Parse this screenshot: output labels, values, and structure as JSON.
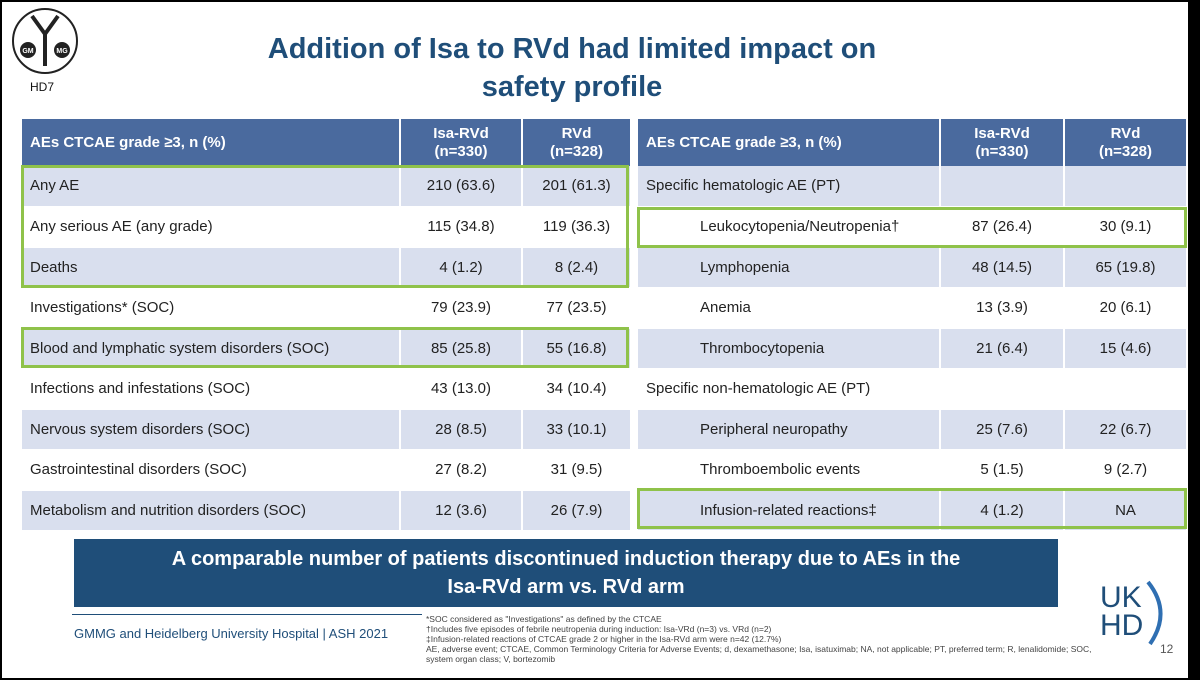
{
  "logo": {
    "left_text": "GM",
    "right_text": "MG",
    "caption": "HD7"
  },
  "title": {
    "line1": "Addition of Isa to RVd had limited impact on",
    "line2": "safety profile"
  },
  "left_table": {
    "headers": {
      "label": "AEs CTCAE grade ≥3, n (%)",
      "col1_line1": "Isa-RVd",
      "col1_line2": "(n=330)",
      "col2_line1": "RVd",
      "col2_line2": "(n=328)"
    },
    "rows": [
      {
        "label": "Any AE",
        "isa": "210 (63.6)",
        "rvd": "201 (61.3)"
      },
      {
        "label": "Any serious AE (any grade)",
        "isa": "115 (34.8)",
        "rvd": "119 (36.3)"
      },
      {
        "label": "Deaths",
        "isa": "4 (1.2)",
        "rvd": "8 (2.4)"
      },
      {
        "label": "Investigations* (SOC)",
        "isa": "79 (23.9)",
        "rvd": "77 (23.5)"
      },
      {
        "label": "Blood and lymphatic system disorders (SOC)",
        "isa": "85 (25.8)",
        "rvd": "55 (16.8)"
      },
      {
        "label": "Infections and infestations (SOC)",
        "isa": "43 (13.0)",
        "rvd": "34 (10.4)"
      },
      {
        "label": "Nervous system disorders (SOC)",
        "isa": "28 (8.5)",
        "rvd": "33 (10.1)"
      },
      {
        "label": "Gastrointestinal disorders (SOC)",
        "isa": "27 (8.2)",
        "rvd": "31 (9.5)"
      },
      {
        "label": "Metabolism and nutrition disorders (SOC)",
        "isa": "12 (3.6)",
        "rvd": "26 (7.9)"
      }
    ]
  },
  "right_table": {
    "headers": {
      "label": "AEs CTCAE grade ≥3, n (%)",
      "col1_line1": "Isa-RVd",
      "col1_line2": "(n=330)",
      "col2_line1": "RVd",
      "col2_line2": "(n=328)"
    },
    "rows": [
      {
        "label": "Specific hematologic AE (PT)",
        "isa": "",
        "rvd": ""
      },
      {
        "label": "Leukocytopenia/Neutropenia†",
        "isa": "87 (26.4)",
        "rvd": "30 (9.1)"
      },
      {
        "label": "Lymphopenia",
        "isa": "48 (14.5)",
        "rvd": "65 (19.8)"
      },
      {
        "label": "Anemia",
        "isa": "13 (3.9)",
        "rvd": "20 (6.1)"
      },
      {
        "label": "Thrombocytopenia",
        "isa": "21 (6.4)",
        "rvd": "15 (4.6)"
      },
      {
        "label": "Specific non-hematologic AE (PT)",
        "isa": "",
        "rvd": ""
      },
      {
        "label": "Peripheral neuropathy",
        "isa": "25 (7.6)",
        "rvd": "22 (6.7)"
      },
      {
        "label": "Thromboembolic events",
        "isa": "5 (1.5)",
        "rvd": "9 (2.7)"
      },
      {
        "label": "Infusion-related reactions‡",
        "isa": "4 (1.2)",
        "rvd": "NA"
      }
    ]
  },
  "banner": {
    "line1": "A comparable number of patients discontinued induction therapy due to AEs in the",
    "line2": "Isa-RVd arm vs. RVd arm"
  },
  "footer": {
    "text": "GMMG and Heidelberg University Hospital | ASH 2021"
  },
  "notes": {
    "n1": "*SOC considered as \"Investigations\" as defined by the CTCAE",
    "n2": "†Includes five episodes of febrile neutropenia during induction: Isa-VRd (n=3) vs. VRd (n=2)",
    "n3": "‡Infusion-related reactions of CTCAE grade 2 or higher in the Isa-RVd arm were n=42 (12.7%)",
    "n4": "AE, adverse event; CTCAE, Common Terminology Criteria for Adverse Events; d, dexamethasone; Isa, isatuximab; NA, not applicable; PT, preferred term; R, lenalidomide; SOC, system organ class; V, bortezomib"
  },
  "ukhd_logo": {
    "line1": "UK",
    "line2": "HD"
  },
  "page_number": "12",
  "colors": {
    "title": "#1f4e79",
    "header_bg": "#4a6a9e",
    "row_alt": "#d9dfee",
    "highlight": "#8fc24a",
    "banner_bg": "#1f4e79"
  }
}
